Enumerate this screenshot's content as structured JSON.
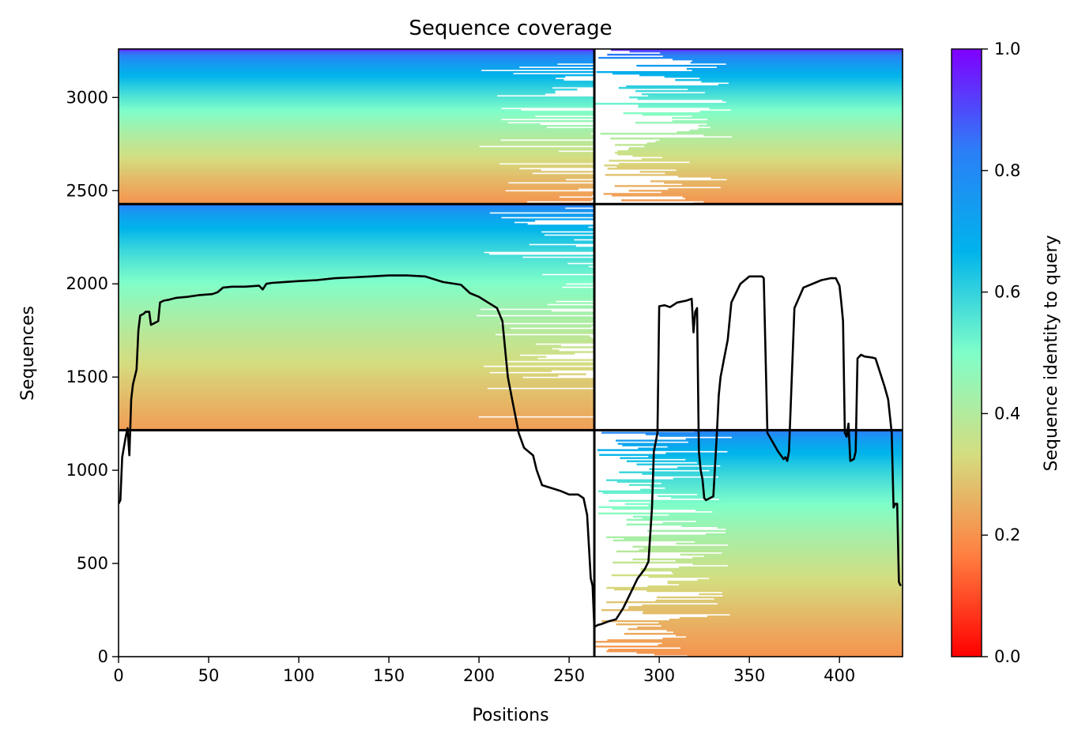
{
  "chart_data": {
    "type": "heatmap",
    "title": "Sequence coverage",
    "xlabel": "Positions",
    "ylabel": "Sequences",
    "xlim": [
      0,
      435
    ],
    "ylim": [
      0,
      3260
    ],
    "xticks": [
      0,
      50,
      100,
      150,
      200,
      250,
      300,
      350,
      400
    ],
    "yticks": [
      0,
      500,
      1000,
      1500,
      2000,
      2500,
      3000
    ],
    "colorbar": {
      "label": "Sequence identity to query",
      "range": [
        0,
        1
      ],
      "ticks": [
        "0.0",
        "0.2",
        "0.4",
        "0.6",
        "0.8",
        "1.0"
      ],
      "colormap": "rainbow",
      "stops": [
        "#ff0000",
        "#ff7f41",
        "#d4dd80",
        "#7ffec9",
        "#00b4eb",
        "#2c7ef7",
        "#8000ff"
      ]
    },
    "chain_boundaries": {
      "x": [
        264
      ],
      "y": [
        1215,
        2428
      ]
    },
    "blocks": [
      {
        "x0": 0,
        "x1": 264,
        "y0": 1215,
        "y1": 2428,
        "identity_bottom": 0.22,
        "identity_top": 0.85,
        "fill": "dense"
      },
      {
        "x0": 264,
        "x1": 435,
        "y0": 0,
        "y1": 1215,
        "identity_bottom": 0.2,
        "identity_top": 0.85,
        "fill": "sparse"
      },
      {
        "x0": 0,
        "x1": 264,
        "y0": 2428,
        "y1": 3260,
        "identity_bottom": 0.2,
        "identity_top": 0.95,
        "fill": "dense"
      },
      {
        "x0": 264,
        "x1": 435,
        "y0": 2428,
        "y1": 3260,
        "identity_bottom": 0.2,
        "identity_top": 0.95,
        "fill": "sparse"
      }
    ],
    "coverage_line": {
      "color": "#000000",
      "x": [
        0,
        1,
        2,
        4,
        5,
        6,
        7,
        8,
        10,
        11,
        12,
        14,
        15,
        17,
        18,
        20,
        22,
        23,
        25,
        28,
        32,
        38,
        45,
        52,
        55,
        58,
        63,
        70,
        78,
        80,
        82,
        85,
        92,
        100,
        110,
        120,
        130,
        140,
        150,
        160,
        170,
        180,
        190,
        195,
        200,
        205,
        210,
        213,
        216,
        218,
        220,
        222,
        225,
        230,
        232,
        235,
        240,
        245,
        250,
        255,
        258,
        260,
        262,
        263,
        264,
        266,
        268,
        272,
        276,
        280,
        284,
        288,
        292,
        294,
        296,
        297,
        299,
        300,
        303,
        306,
        310,
        315,
        318,
        319,
        320,
        321,
        322,
        323,
        324,
        325,
        326,
        328,
        330,
        332,
        333,
        334,
        335,
        336,
        338,
        340,
        345,
        350,
        355,
        357,
        358,
        360,
        363,
        366,
        369,
        370,
        371,
        372,
        375,
        380,
        390,
        395,
        398,
        400,
        401,
        402,
        403,
        404,
        405,
        406,
        408,
        409,
        410,
        412,
        414,
        418,
        420,
        425,
        427,
        429,
        430,
        431,
        432,
        433,
        434
      ],
      "y": [
        820,
        840,
        1070,
        1180,
        1225,
        1080,
        1380,
        1460,
        1540,
        1750,
        1830,
        1840,
        1850,
        1850,
        1780,
        1790,
        1800,
        1900,
        1910,
        1915,
        1925,
        1930,
        1940,
        1945,
        1955,
        1980,
        1985,
        1985,
        1990,
        1970,
        2000,
        2005,
        2010,
        2015,
        2020,
        2030,
        2035,
        2040,
        2045,
        2045,
        2040,
        2010,
        1995,
        1950,
        1930,
        1900,
        1870,
        1800,
        1500,
        1400,
        1300,
        1200,
        1120,
        1080,
        1000,
        920,
        905,
        890,
        870,
        870,
        850,
        760,
        420,
        380,
        160,
        170,
        175,
        190,
        200,
        260,
        340,
        420,
        470,
        510,
        800,
        1100,
        1200,
        1880,
        1885,
        1875,
        1900,
        1910,
        1920,
        1740,
        1850,
        1870,
        1100,
        1000,
        950,
        850,
        840,
        850,
        860,
        1200,
        1400,
        1500,
        1550,
        1600,
        1700,
        1900,
        2000,
        2040,
        2040,
        2040,
        2030,
        1200,
        1150,
        1100,
        1060,
        1070,
        1050,
        1100,
        1870,
        1980,
        2020,
        2030,
        2030,
        1990,
        1900,
        1800,
        1200,
        1180,
        1250,
        1050,
        1060,
        1100,
        1600,
        1620,
        1610,
        1605,
        1600,
        1450,
        1380,
        1200,
        800,
        820,
        820,
        400,
        380
      ]
    }
  }
}
